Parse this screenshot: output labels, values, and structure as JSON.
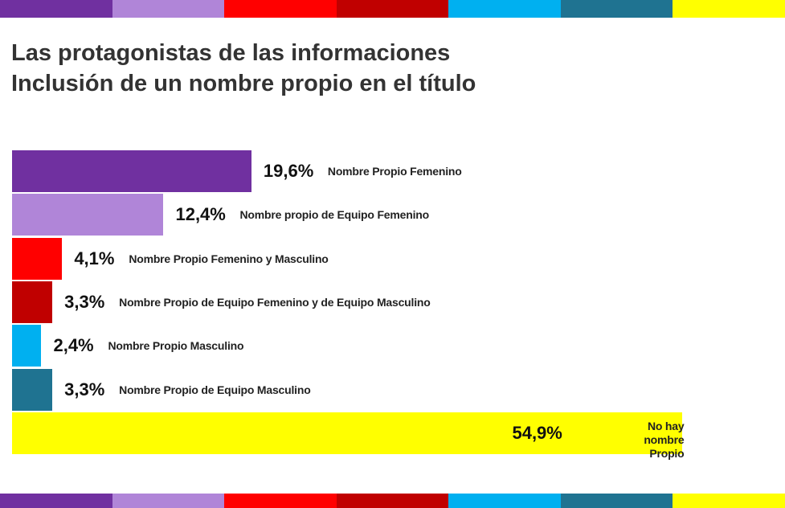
{
  "chart_data": {
    "type": "bar",
    "orientation": "horizontal",
    "title": [
      "Las protagonistas de las informaciones",
      "Inclusión de un nombre propio en el título"
    ],
    "categories": [
      "Nombre Propio Femenino",
      "Nombre propio de Equipo Femenino",
      "Nombre Propio Femenino y Masculino",
      "Nombre Propio de Equipo Femenino y de Equipo Masculino",
      "Nombre Propio Masculino",
      "Nombre Propio de Equipo Masculino",
      "No hay nombre Propio"
    ],
    "values": [
      19.6,
      12.4,
      4.1,
      3.3,
      2.4,
      3.3,
      54.9
    ],
    "value_labels": [
      "19,6%",
      "12,4%",
      "4,1%",
      "3,3%",
      "2,4%",
      "3,3%",
      "54,9%"
    ],
    "colors": [
      "#7030a0",
      "#b085d8",
      "#ff0000",
      "#c00000",
      "#00b0f0",
      "#1f7391",
      "#ffff00"
    ]
  }
}
